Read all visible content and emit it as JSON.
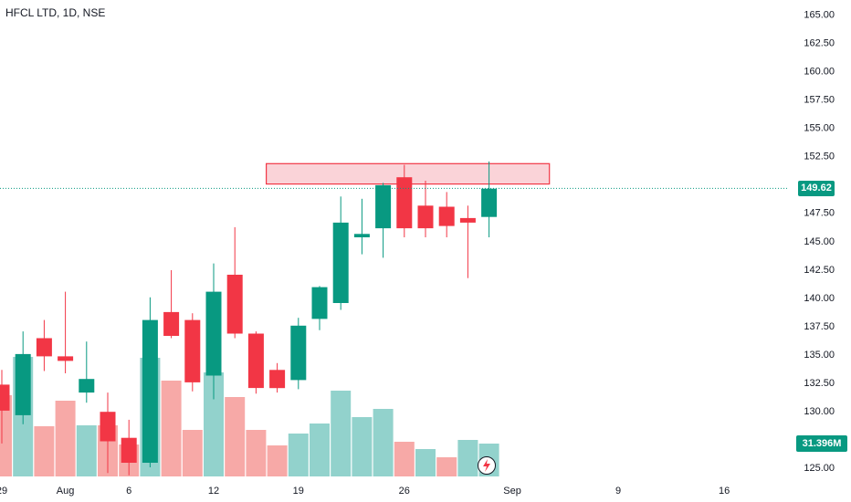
{
  "header": {
    "title": "HFCL LTD, 1D, NSE"
  },
  "colors": {
    "up": "#089981",
    "down": "#F23645",
    "up_volume": "#92D2CC",
    "down_volume": "#F7A9A7",
    "zone_fill": "#FAD3D8",
    "zone_stroke": "#F23645",
    "axis_text": "#131722",
    "last_price_line": "#089981"
  },
  "last_price": {
    "value": "149.62"
  },
  "last_volume": {
    "value": "31.396M"
  },
  "watermark": {
    "icon": "lightning-icon"
  },
  "chart_data": {
    "type": "candlestick",
    "title": "HFCL LTD, 1D, NSE",
    "ylim": [
      124.2,
      166.3
    ],
    "y_ticks": [
      "125.00",
      "127.50",
      "130.00",
      "132.50",
      "135.00",
      "137.50",
      "140.00",
      "142.50",
      "145.00",
      "147.50",
      "150.00",
      "152.50",
      "155.00",
      "157.50",
      "160.00",
      "162.50",
      "165.00"
    ],
    "x_ticks": [
      {
        "date": "2024-07-29",
        "label": "29"
      },
      {
        "date": "2024-08-01",
        "label": "Aug"
      },
      {
        "date": "2024-08-06",
        "label": "6"
      },
      {
        "date": "2024-08-12",
        "label": "12"
      },
      {
        "date": "2024-08-19",
        "label": "19"
      },
      {
        "date": "2024-08-26",
        "label": "26"
      },
      {
        "date": "2024-09-02",
        "label": "Sep"
      },
      {
        "date": "2024-09-09",
        "label": "9"
      },
      {
        "date": "2024-09-16",
        "label": "16"
      }
    ],
    "candles": [
      {
        "date": "2024-07-29",
        "open": 132.3,
        "high": 133.6,
        "low": 127.1,
        "close": 130.0
      },
      {
        "date": "2024-07-30",
        "open": 129.6,
        "high": 137.0,
        "low": 128.8,
        "close": 135.0
      },
      {
        "date": "2024-07-31",
        "open": 136.4,
        "high": 138.0,
        "low": 133.5,
        "close": 134.8
      },
      {
        "date": "2024-08-01",
        "open": 134.8,
        "high": 140.5,
        "low": 133.3,
        "close": 134.4
      },
      {
        "date": "2024-08-02",
        "open": 131.6,
        "high": 136.1,
        "low": 130.7,
        "close": 132.8
      },
      {
        "date": "2024-08-05",
        "open": 129.9,
        "high": 131.6,
        "low": 124.5,
        "close": 127.3
      },
      {
        "date": "2024-08-06",
        "open": 127.6,
        "high": 129.2,
        "low": 124.3,
        "close": 125.4
      },
      {
        "date": "2024-08-07",
        "open": 125.4,
        "high": 140.0,
        "low": 125.0,
        "close": 138.0
      },
      {
        "date": "2024-08-08",
        "open": 138.7,
        "high": 142.4,
        "low": 136.4,
        "close": 136.6
      },
      {
        "date": "2024-08-09",
        "open": 138.0,
        "high": 138.6,
        "low": 131.7,
        "close": 132.5
      },
      {
        "date": "2024-08-12",
        "open": 133.1,
        "high": 143.0,
        "low": 131.0,
        "close": 140.5
      },
      {
        "date": "2024-08-13",
        "open": 142.0,
        "high": 146.2,
        "low": 136.4,
        "close": 136.8
      },
      {
        "date": "2024-08-14",
        "open": 136.8,
        "high": 137.0,
        "low": 131.5,
        "close": 132.0
      },
      {
        "date": "2024-08-16",
        "open": 133.6,
        "high": 134.2,
        "low": 131.6,
        "close": 132.0
      },
      {
        "date": "2024-08-19",
        "open": 132.7,
        "high": 138.2,
        "low": 131.9,
        "close": 137.5
      },
      {
        "date": "2024-08-20",
        "open": 138.1,
        "high": 141.0,
        "low": 137.1,
        "close": 140.9
      },
      {
        "date": "2024-08-21",
        "open": 139.5,
        "high": 148.9,
        "low": 138.9,
        "close": 146.6
      },
      {
        "date": "2024-08-22",
        "open": 145.3,
        "high": 148.7,
        "low": 143.8,
        "close": 145.6
      },
      {
        "date": "2024-08-23",
        "open": 146.1,
        "high": 150.1,
        "low": 143.5,
        "close": 149.9
      },
      {
        "date": "2024-08-26",
        "open": 150.6,
        "high": 151.7,
        "low": 145.3,
        "close": 146.1
      },
      {
        "date": "2024-08-27",
        "open": 148.1,
        "high": 150.3,
        "low": 145.3,
        "close": 146.1
      },
      {
        "date": "2024-08-28",
        "open": 148.0,
        "high": 149.3,
        "low": 145.3,
        "close": 146.3
      },
      {
        "date": "2024-08-29",
        "open": 147.0,
        "high": 148.1,
        "low": 141.7,
        "close": 146.6
      },
      {
        "date": "2024-08-30",
        "open": 147.1,
        "high": 152.0,
        "low": 145.3,
        "close": 149.6
      }
    ],
    "volume_shading": [
      "down",
      "up",
      "down",
      "down",
      "up",
      "down",
      "down",
      "up",
      "down",
      "down",
      "up",
      "down",
      "down",
      "down",
      "up",
      "up",
      "up",
      "up",
      "up",
      "down",
      "up",
      "down",
      "up",
      "up"
    ],
    "resistance_zone": {
      "from": "2024-08-16",
      "to": "2024-09-04",
      "low": 150.0,
      "high": 151.8
    },
    "last_price": 149.62,
    "last_volume": "31.396M"
  }
}
